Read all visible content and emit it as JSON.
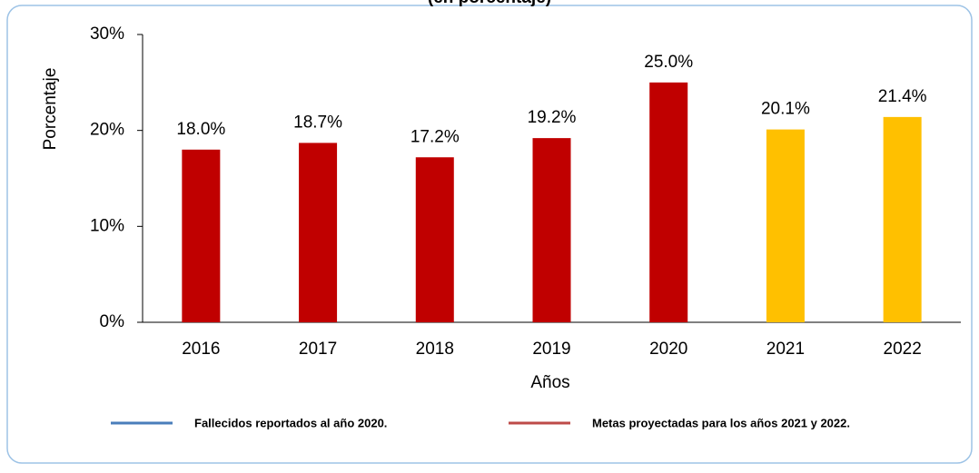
{
  "chart_data": {
    "type": "bar",
    "title": "(en porcentaje)",
    "categories": [
      "2016",
      "2017",
      "2018",
      "2019",
      "2020",
      "2021",
      "2022"
    ],
    "values": [
      18.0,
      18.7,
      17.2,
      19.2,
      25.0,
      20.1,
      21.4
    ],
    "value_labels": [
      "18.0%",
      "18.7%",
      "17.2%",
      "19.2%",
      "25.0%",
      "20.1%",
      "21.4%"
    ],
    "colors": [
      "#c00000",
      "#c00000",
      "#c00000",
      "#c00000",
      "#c00000",
      "#ffc000",
      "#ffc000"
    ],
    "ylim": [
      0,
      30
    ],
    "yticks": [
      {
        "value": 0,
        "label": "0%"
      },
      {
        "value": 10,
        "label": "10%"
      },
      {
        "value": 20,
        "label": "20%"
      },
      {
        "value": 30,
        "label": "30%"
      }
    ],
    "xlabel": "Años",
    "ylabel": "Porcentaje",
    "legend": [
      {
        "name": "Fallecidos reportados al año 2020.",
        "color": "#4a7ebb"
      },
      {
        "name": "Metas proyectadas para los años 2021 y 2022.",
        "color": "#be4b48"
      }
    ]
  }
}
